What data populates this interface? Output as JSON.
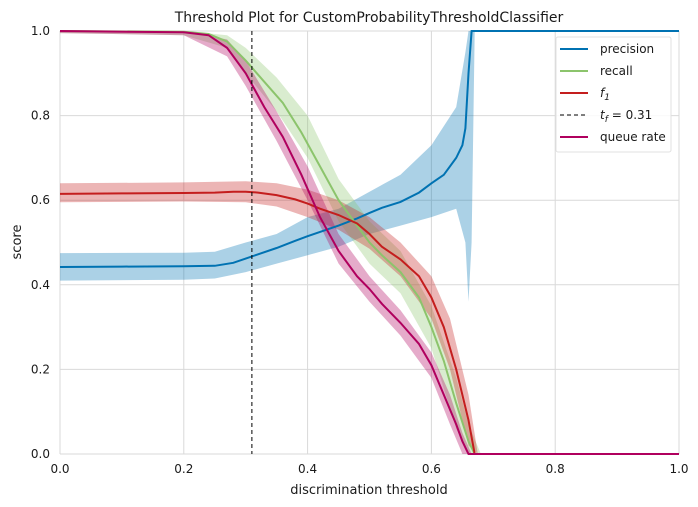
{
  "chart_data": {
    "type": "line",
    "title": "Threshold Plot for CustomProbabilityThresholdClassifier",
    "xlabel": "discrimination threshold",
    "ylabel": "score",
    "xlim": [
      0,
      1
    ],
    "ylim": [
      0,
      1
    ],
    "xticks": [
      "0.0",
      "0.2",
      "0.4",
      "0.6",
      "0.8",
      "1.0"
    ],
    "yticks": [
      "0.0",
      "0.2",
      "0.4",
      "0.6",
      "0.8",
      "1.0"
    ],
    "grid": true,
    "legend_position": "top-right",
    "threshold_line": {
      "x": 0.31,
      "label": "t_f = 0.31"
    },
    "colors": {
      "precision": "#0072b2",
      "recall": "#8cc46c",
      "f1": "#c41e1e",
      "threshold": "#000000",
      "queue_rate": "#b0005e",
      "background": "#ffffff",
      "grid": "#d9d9d9"
    },
    "series": [
      {
        "name": "precision",
        "points": [
          [
            0.0,
            0.442
          ],
          [
            0.1,
            0.443
          ],
          [
            0.2,
            0.444
          ],
          [
            0.25,
            0.445
          ],
          [
            0.28,
            0.452
          ],
          [
            0.3,
            0.462
          ],
          [
            0.32,
            0.472
          ],
          [
            0.35,
            0.487
          ],
          [
            0.38,
            0.504
          ],
          [
            0.4,
            0.515
          ],
          [
            0.42,
            0.525
          ],
          [
            0.45,
            0.54
          ],
          [
            0.48,
            0.557
          ],
          [
            0.5,
            0.57
          ],
          [
            0.52,
            0.582
          ],
          [
            0.55,
            0.596
          ],
          [
            0.58,
            0.618
          ],
          [
            0.6,
            0.64
          ],
          [
            0.62,
            0.66
          ],
          [
            0.64,
            0.7
          ],
          [
            0.65,
            0.73
          ],
          [
            0.655,
            0.77
          ],
          [
            0.66,
            0.9
          ],
          [
            0.665,
            1.0
          ],
          [
            1.0,
            1.0
          ]
        ],
        "band": [
          [
            0.0,
            0.41,
            0.475
          ],
          [
            0.2,
            0.412,
            0.476
          ],
          [
            0.25,
            0.415,
            0.478
          ],
          [
            0.3,
            0.43,
            0.5
          ],
          [
            0.35,
            0.45,
            0.52
          ],
          [
            0.4,
            0.47,
            0.56
          ],
          [
            0.45,
            0.49,
            0.58
          ],
          [
            0.5,
            0.52,
            0.62
          ],
          [
            0.55,
            0.54,
            0.66
          ],
          [
            0.6,
            0.56,
            0.73
          ],
          [
            0.64,
            0.58,
            0.82
          ],
          [
            0.655,
            0.5,
            0.95
          ],
          [
            0.66,
            0.36,
            1.0
          ],
          [
            0.665,
            0.5,
            1.0
          ],
          [
            0.67,
            1.0,
            1.0
          ],
          [
            1.0,
            1.0,
            1.0
          ]
        ]
      },
      {
        "name": "recall",
        "points": [
          [
            0.0,
            1.0
          ],
          [
            0.2,
            0.998
          ],
          [
            0.24,
            0.993
          ],
          [
            0.27,
            0.975
          ],
          [
            0.3,
            0.93
          ],
          [
            0.33,
            0.88
          ],
          [
            0.36,
            0.83
          ],
          [
            0.39,
            0.76
          ],
          [
            0.42,
            0.68
          ],
          [
            0.45,
            0.6
          ],
          [
            0.48,
            0.54
          ],
          [
            0.5,
            0.5
          ],
          [
            0.52,
            0.47
          ],
          [
            0.55,
            0.43
          ],
          [
            0.58,
            0.37
          ],
          [
            0.6,
            0.3
          ],
          [
            0.62,
            0.22
          ],
          [
            0.64,
            0.12
          ],
          [
            0.66,
            0.03
          ],
          [
            0.67,
            0.0
          ],
          [
            1.0,
            0.0
          ]
        ],
        "band": [
          [
            0.0,
            0.995,
            1.0
          ],
          [
            0.2,
            0.99,
            1.0
          ],
          [
            0.27,
            0.96,
            0.99
          ],
          [
            0.3,
            0.9,
            0.96
          ],
          [
            0.35,
            0.81,
            0.89
          ],
          [
            0.4,
            0.7,
            0.8
          ],
          [
            0.45,
            0.55,
            0.65
          ],
          [
            0.5,
            0.45,
            0.55
          ],
          [
            0.55,
            0.38,
            0.48
          ],
          [
            0.6,
            0.25,
            0.35
          ],
          [
            0.64,
            0.06,
            0.18
          ],
          [
            0.66,
            0.0,
            0.07
          ],
          [
            0.68,
            0.0,
            0.0
          ],
          [
            1.0,
            0.0,
            0.0
          ]
        ]
      },
      {
        "name": "f1",
        "points": [
          [
            0.0,
            0.615
          ],
          [
            0.1,
            0.616
          ],
          [
            0.2,
            0.617
          ],
          [
            0.25,
            0.618
          ],
          [
            0.28,
            0.62
          ],
          [
            0.3,
            0.62
          ],
          [
            0.32,
            0.618
          ],
          [
            0.35,
            0.612
          ],
          [
            0.38,
            0.602
          ],
          [
            0.4,
            0.592
          ],
          [
            0.42,
            0.58
          ],
          [
            0.45,
            0.565
          ],
          [
            0.48,
            0.545
          ],
          [
            0.5,
            0.52
          ],
          [
            0.52,
            0.49
          ],
          [
            0.55,
            0.46
          ],
          [
            0.58,
            0.42
          ],
          [
            0.6,
            0.37
          ],
          [
            0.62,
            0.3
          ],
          [
            0.64,
            0.2
          ],
          [
            0.66,
            0.08
          ],
          [
            0.67,
            0.0
          ],
          [
            1.0,
            0.0
          ]
        ],
        "band": [
          [
            0.0,
            0.595,
            0.64
          ],
          [
            0.2,
            0.597,
            0.642
          ],
          [
            0.3,
            0.595,
            0.645
          ],
          [
            0.35,
            0.585,
            0.64
          ],
          [
            0.4,
            0.56,
            0.625
          ],
          [
            0.45,
            0.53,
            0.6
          ],
          [
            0.5,
            0.485,
            0.56
          ],
          [
            0.55,
            0.42,
            0.5
          ],
          [
            0.6,
            0.32,
            0.42
          ],
          [
            0.63,
            0.2,
            0.32
          ],
          [
            0.66,
            0.02,
            0.14
          ],
          [
            0.675,
            0.0,
            0.0
          ],
          [
            1.0,
            0.0,
            0.0
          ]
        ]
      },
      {
        "name": "queue rate",
        "points": [
          [
            0.0,
            1.0
          ],
          [
            0.2,
            0.997
          ],
          [
            0.24,
            0.99
          ],
          [
            0.27,
            0.96
          ],
          [
            0.3,
            0.9
          ],
          [
            0.33,
            0.82
          ],
          [
            0.36,
            0.75
          ],
          [
            0.39,
            0.66
          ],
          [
            0.42,
            0.56
          ],
          [
            0.45,
            0.48
          ],
          [
            0.48,
            0.42
          ],
          [
            0.5,
            0.39
          ],
          [
            0.52,
            0.355
          ],
          [
            0.55,
            0.31
          ],
          [
            0.58,
            0.26
          ],
          [
            0.6,
            0.21
          ],
          [
            0.62,
            0.14
          ],
          [
            0.64,
            0.07
          ],
          [
            0.65,
            0.03
          ],
          [
            0.66,
            0.0
          ],
          [
            1.0,
            0.0
          ]
        ],
        "band": [
          [
            0.0,
            0.995,
            1.0
          ],
          [
            0.2,
            0.99,
            1.0
          ],
          [
            0.27,
            0.94,
            0.98
          ],
          [
            0.3,
            0.87,
            0.93
          ],
          [
            0.35,
            0.74,
            0.81
          ],
          [
            0.4,
            0.6,
            0.68
          ],
          [
            0.45,
            0.45,
            0.52
          ],
          [
            0.5,
            0.36,
            0.42
          ],
          [
            0.55,
            0.28,
            0.34
          ],
          [
            0.6,
            0.18,
            0.24
          ],
          [
            0.63,
            0.07,
            0.14
          ],
          [
            0.65,
            0.0,
            0.05
          ],
          [
            0.665,
            0.0,
            0.0
          ],
          [
            1.0,
            0.0,
            0.0
          ]
        ]
      }
    ],
    "legend": [
      {
        "label": "precision",
        "key": "precision",
        "style": "solid"
      },
      {
        "label": "recall",
        "key": "recall",
        "style": "solid"
      },
      {
        "label": "f",
        "subscript": "1",
        "key": "f1",
        "style": "solid"
      },
      {
        "label": "t",
        "subscript": "f",
        "suffix": " = 0.31",
        "key": "threshold",
        "style": "dashed"
      },
      {
        "label": "queue rate",
        "key": "queue_rate",
        "style": "solid"
      }
    ]
  }
}
